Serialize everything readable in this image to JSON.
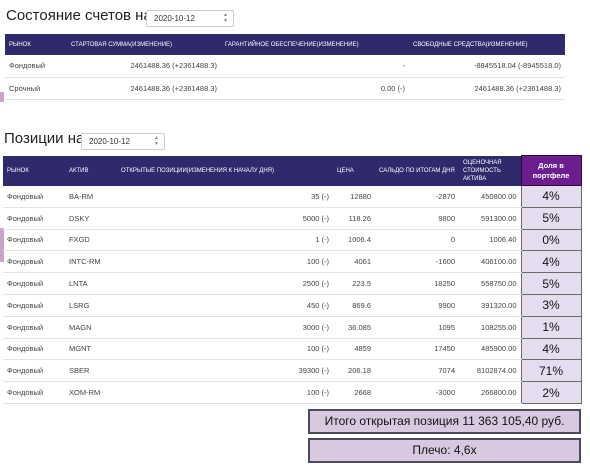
{
  "accounts": {
    "title": "Состояние счетов на",
    "date": "2020-10-12",
    "headers": [
      "РЫНОК",
      "СТАРТОВАЯ СУММА(ИЗМЕНЕНИЕ)",
      "ГАРАНТИЙНОЕ ОБЕСПЕЧЕНИЕ(ИЗМЕНЕНИЕ)",
      "СВОБОДНЫЕ СРЕДСТВА(ИЗМЕНЕНИЕ)"
    ],
    "rows": [
      {
        "market": "Фондовый",
        "start": "2461488.36 (+2361488.3)",
        "margin": "-",
        "free": "-8845518.04 (-8945518.0)"
      },
      {
        "market": "Срочный",
        "start": "2461488.36 (+2361488.3)",
        "margin": "0.00 (-)",
        "free": "2461488.36 (+2361488.3)"
      }
    ]
  },
  "positions": {
    "title": "Позиции на",
    "date": "2020-10-12",
    "headers": [
      "РЫНОК",
      "АКТИВ",
      "ОТКРЫТЫЕ ПОЗИЦИИ(ИЗМЕНЕНИЯ К НАЧАЛУ ДНЯ)",
      "ЦЕНА",
      "САЛЬДО ПО ИТОГАМ ДНЯ",
      "ОЦЕНОЧНАЯ СТОИМОСТЬ АКТИВА",
      "Доля в портфеле"
    ],
    "rows": [
      {
        "market": "Фондовый",
        "asset": "BA-RM",
        "open": "35 (-)",
        "price": "12880",
        "saldo": "-2870",
        "value": "450800.00",
        "share": "4%"
      },
      {
        "market": "Фондовый",
        "asset": "DSKY",
        "open": "5000 (-)",
        "price": "118.26",
        "saldo": "9800",
        "value": "591300.00",
        "share": "5%"
      },
      {
        "market": "Фондовый",
        "asset": "FXGD",
        "open": "1 (-)",
        "price": "1006.4",
        "saldo": "0",
        "value": "1006.40",
        "share": "0%"
      },
      {
        "market": "Фондовый",
        "asset": "INTC-RM",
        "open": "100 (-)",
        "price": "4061",
        "saldo": "-1600",
        "value": "406100.00",
        "share": "4%"
      },
      {
        "market": "Фондовый",
        "asset": "LNTA",
        "open": "2500 (-)",
        "price": "223.5",
        "saldo": "18250",
        "value": "558750.00",
        "share": "5%"
      },
      {
        "market": "Фондовый",
        "asset": "LSRG",
        "open": "450 (-)",
        "price": "869.6",
        "saldo": "9900",
        "value": "391320.00",
        "share": "3%"
      },
      {
        "market": "Фондовый",
        "asset": "MAGN",
        "open": "3000 (-)",
        "price": "36.085",
        "saldo": "1095",
        "value": "108255.00",
        "share": "1%"
      },
      {
        "market": "Фондовый",
        "asset": "MGNT",
        "open": "100 (-)",
        "price": "4859",
        "saldo": "17450",
        "value": "485900.00",
        "share": "4%"
      },
      {
        "market": "Фондовый",
        "asset": "SBER",
        "open": "39300 (-)",
        "price": "206.18",
        "saldo": "7074",
        "value": "8102874.00",
        "share": "71%"
      },
      {
        "market": "Фондовый",
        "asset": "XOM-RM",
        "open": "100 (-)",
        "price": "2668",
        "saldo": "-3000",
        "value": "266800.00",
        "share": "2%"
      }
    ]
  },
  "summary": {
    "total": "Итого открытая позиция 11 363 105,40 руб.",
    "leverage": "Плечо: 4,6х"
  },
  "colors": {
    "header_bg": "#2e2a6b",
    "share_header_bg": "#6b1f8f",
    "share_cell_bg": "#e6dcef",
    "summary_bg": "#d8c8e0"
  }
}
